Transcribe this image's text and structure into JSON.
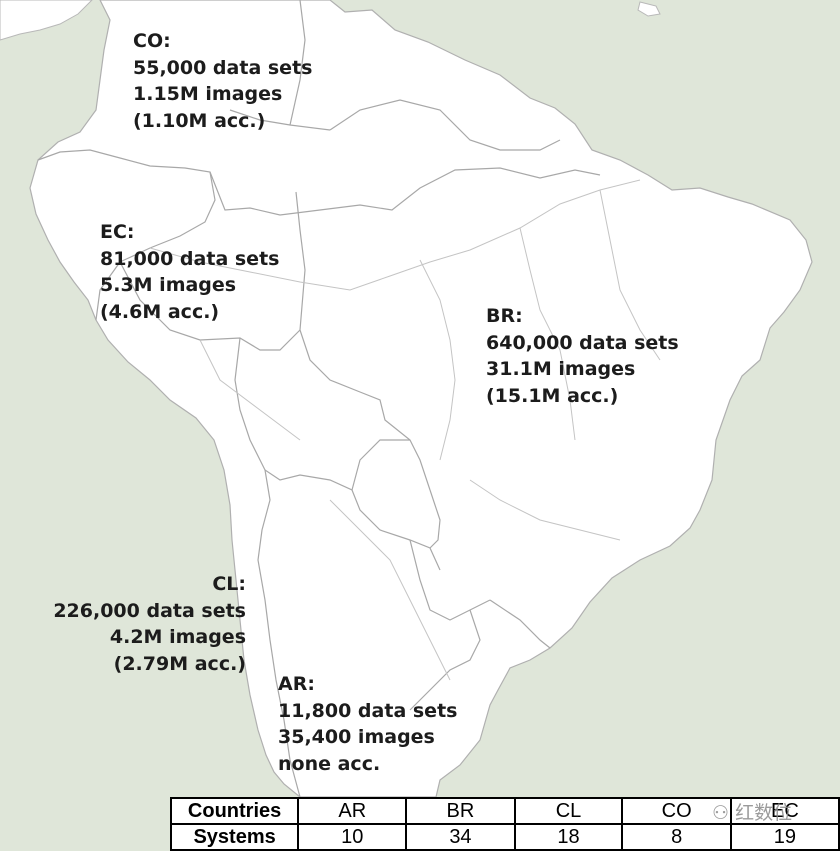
{
  "regions": {
    "co": {
      "code": "CO:",
      "datasets": "55,000 data sets",
      "images": "1.15M images",
      "accessible": "(1.10M acc.)"
    },
    "ec": {
      "code": "EC:",
      "datasets": "81,000 data sets",
      "images": "5.3M images",
      "accessible": "(4.6M acc.)"
    },
    "br": {
      "code": "BR:",
      "datasets": "640,000 data sets",
      "images": "31.1M images",
      "accessible": "(15.1M acc.)"
    },
    "cl": {
      "code": "CL:",
      "datasets": "226,000 data sets",
      "images": "4.2M images",
      "accessible": "(2.79M acc.)"
    },
    "ar": {
      "code": "AR:",
      "datasets": "11,800 data sets",
      "images": "35,400 images",
      "accessible": "none acc."
    }
  },
  "table": {
    "row1_header": "Countries",
    "row2_header": "Systems",
    "countries": [
      "AR",
      "BR",
      "CL",
      "CO",
      "EC"
    ],
    "systems": [
      "10",
      "34",
      "18",
      "8",
      "19"
    ]
  },
  "watermark": "红数位",
  "colors": {
    "ocean": "#dfe6d9",
    "land": "#ffffff",
    "border": "#aaaaaa",
    "text": "#1c1c1c"
  }
}
